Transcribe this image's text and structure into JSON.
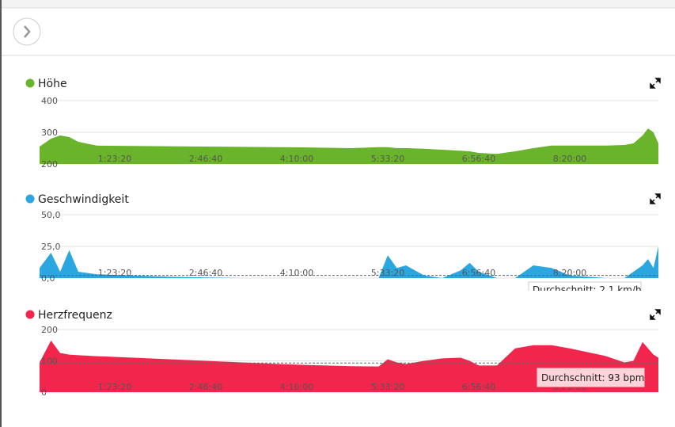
{
  "chart_data": [
    {
      "type": "area",
      "title": "Höhe",
      "color": "#6ab42c",
      "x": [
        870,
        1500,
        2000,
        2500,
        3000,
        4000,
        6000,
        8000,
        10000,
        12000,
        14000,
        16000,
        18000,
        19500,
        20000,
        20500,
        21000,
        22000,
        23000,
        24000,
        24500,
        25000,
        26000,
        27000,
        28000,
        29000,
        30000,
        32000,
        33000,
        33500,
        34000,
        34300,
        34600,
        34870
      ],
      "values": [
        255,
        280,
        290,
        285,
        270,
        258,
        257,
        256,
        255,
        254,
        253,
        252,
        250,
        253,
        253,
        250,
        250,
        248,
        245,
        242,
        240,
        235,
        232,
        240,
        250,
        258,
        258,
        258,
        260,
        265,
        290,
        312,
        300,
        265
      ],
      "xlim": [
        870,
        34870
      ],
      "xticks": [
        {
          "value": 5000,
          "label": "1:23:20"
        },
        {
          "value": 10000,
          "label": "2:46:40"
        },
        {
          "value": 15000,
          "label": "4:10:00"
        },
        {
          "value": 20000,
          "label": "5:33:20"
        },
        {
          "value": 25000,
          "label": "6:56:40"
        },
        {
          "value": 30000,
          "label": "8:20:00"
        }
      ],
      "ylim": [
        200,
        400
      ],
      "yticks": [
        200,
        300,
        400
      ],
      "grid": true
    },
    {
      "type": "area",
      "title": "Geschwindigkeit",
      "color": "#2aa6e0",
      "x": [
        870,
        1500,
        2000,
        2500,
        3000,
        4000,
        6000,
        8000,
        10000,
        12000,
        14000,
        16000,
        18000,
        19500,
        20000,
        20500,
        21000,
        22000,
        23000,
        24000,
        24500,
        25000,
        26000,
        27000,
        28000,
        29000,
        30000,
        32000,
        33000,
        33500,
        34000,
        34300,
        34600,
        34870
      ],
      "values": [
        8,
        20,
        5,
        22,
        5,
        3,
        2,
        1,
        0.5,
        0,
        0,
        0,
        0,
        0,
        18,
        8,
        10,
        2,
        0,
        6,
        12,
        5,
        0,
        0,
        10,
        8,
        2,
        0,
        0,
        5,
        10,
        15,
        8,
        25
      ],
      "xlim": [
        870,
        34870
      ],
      "xticks": [
        {
          "value": 5000,
          "label": "1:23:20"
        },
        {
          "value": 10000,
          "label": "2:46:40"
        },
        {
          "value": 15000,
          "label": "4:10:00"
        },
        {
          "value": 20000,
          "label": "5:33:20"
        },
        {
          "value": 25000,
          "label": "6:56:40"
        },
        {
          "value": 30000,
          "label": "8:20:00"
        }
      ],
      "ylim": [
        0,
        50
      ],
      "yticks": [
        {
          "value": 0,
          "label": "0,0"
        },
        {
          "value": 25,
          "label": "25,0"
        },
        {
          "value": 50,
          "label": "50,0"
        }
      ],
      "grid": true,
      "average": {
        "value": 2.1,
        "label": "Durchschnitt: 2,1 km/h"
      }
    },
    {
      "type": "area",
      "title": "Herzfrequenz",
      "color": "#f2254c",
      "x": [
        870,
        1500,
        2000,
        2500,
        3000,
        4000,
        6000,
        8000,
        10000,
        12000,
        14000,
        16000,
        18000,
        19500,
        20000,
        20500,
        21000,
        22000,
        23000,
        24000,
        24500,
        25000,
        26000,
        27000,
        28000,
        29000,
        30000,
        32000,
        33000,
        33500,
        34000,
        34300,
        34600,
        34870
      ],
      "values": [
        95,
        165,
        125,
        120,
        118,
        115,
        110,
        105,
        100,
        95,
        90,
        86,
        83,
        82,
        105,
        95,
        90,
        100,
        108,
        110,
        100,
        85,
        85,
        140,
        150,
        150,
        140,
        115,
        95,
        100,
        160,
        140,
        120,
        110
      ],
      "xlim": [
        870,
        34870
      ],
      "xticks": [
        {
          "value": 5000,
          "label": "1:23:20"
        },
        {
          "value": 10000,
          "label": "2:46:40"
        },
        {
          "value": 15000,
          "label": "4:10:00"
        },
        {
          "value": 20000,
          "label": "5:33:20"
        },
        {
          "value": 25000,
          "label": "6:56:40"
        },
        {
          "value": 30000,
          "label": "8:20:00"
        }
      ],
      "ylim": [
        0,
        200
      ],
      "yticks": [
        0,
        100,
        200
      ],
      "grid": true,
      "average": {
        "value": 93,
        "label": "Durchschnitt: 93 bpm"
      }
    }
  ]
}
